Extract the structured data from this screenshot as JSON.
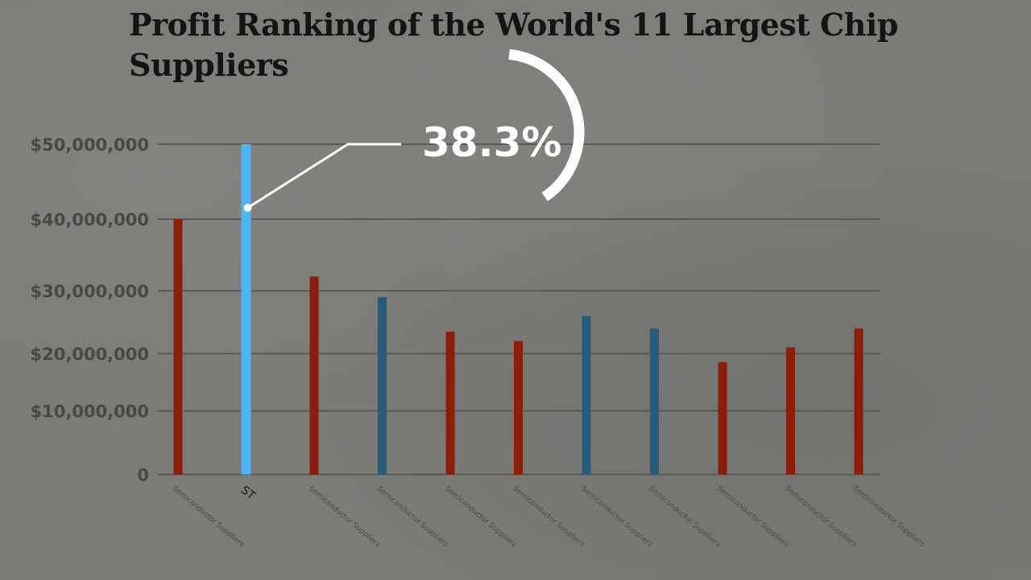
{
  "chart_data": {
    "type": "bar",
    "title": "Profit Ranking of the World's 11 Largest Chip Suppliers",
    "xlabel": "",
    "ylabel": "",
    "ylim": [
      0,
      50000000
    ],
    "yticks": [
      {
        "value": 0,
        "label": "0"
      },
      {
        "value": 10000000,
        "label": "$10,000,000"
      },
      {
        "value": 20000000,
        "label": "$20,000,000"
      },
      {
        "value": 30000000,
        "label": "$30,000,000"
      },
      {
        "value": 40000000,
        "label": "$40,000,000"
      },
      {
        "value": 50000000,
        "label": "$50,000,000"
      }
    ],
    "categories": [
      "Semiconductor Suppliers",
      "ST",
      "Semiconductor Suppliers",
      "Semiconductor Suppliers",
      "Semiconductor Suppliers",
      "Semiconductor Suppliers",
      "Semiconductor Suppliers",
      "Semiconductor Suppliers",
      "Semiconductor Suppliers",
      "Semiconductor Suppliers",
      "Semiconductor Suppliers"
    ],
    "values": [
      40000000,
      50000000,
      32000000,
      29000000,
      23500000,
      22000000,
      26000000,
      24000000,
      18500000,
      21000000,
      24000000
    ],
    "bar_colors": [
      "#8b1e0b",
      "#4fb4f3",
      "#8b1e0b",
      "#275b7c",
      "#8b1e0b",
      "#8b1e0b",
      "#275b7c",
      "#275b7c",
      "#8b1e0b",
      "#8b1e0b",
      "#8b1e0b"
    ],
    "highlight_index": 1,
    "callout": {
      "value": 38.3,
      "label": "38.3%"
    },
    "grid": true,
    "legend": "none"
  },
  "colors": {
    "background": "#7d7b78",
    "grid": "#5c5a57",
    "red_bar": "#8b1e0b",
    "blue_bar": "#275b7c",
    "highlight_bar": "#4fb4f3",
    "callout": "#ffffff"
  }
}
